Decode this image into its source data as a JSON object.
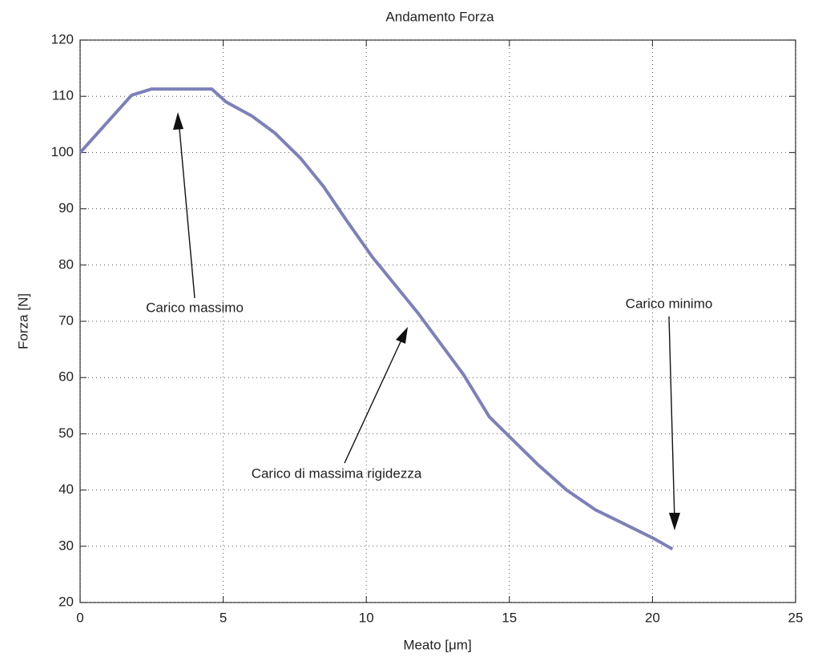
{
  "chart_data": {
    "type": "line",
    "title": "Andamento Forza",
    "x_label": "Meato [μm]",
    "y_label": "Forza [N]",
    "x": [
      0,
      1.8,
      2.5,
      4.6,
      5.1,
      6,
      6.8,
      7.7,
      8.5,
      9.3,
      10.2,
      11,
      11.8,
      12.6,
      13.4,
      14.3,
      15.2,
      16,
      17,
      18,
      19,
      20,
      20.7
    ],
    "series": [
      {
        "name": "Forza",
        "color": "#7c80ba",
        "values": [
          100,
          110.2,
          111.3,
          111.3,
          109,
          106.5,
          103.5,
          99,
          94,
          88,
          81.5,
          76.5,
          71.5,
          66,
          60.5,
          53,
          48.5,
          44.5,
          40,
          36.5,
          34,
          31.5,
          29.5
        ]
      }
    ],
    "xlim": [
      0,
      25
    ],
    "xticks": [
      0,
      5,
      10,
      15,
      20,
      25
    ],
    "ylim": [
      20,
      120
    ],
    "yticks": [
      20,
      30,
      40,
      50,
      60,
      70,
      80,
      90,
      100,
      110,
      120
    ],
    "grid": true,
    "annotations": [
      "Carico massimo",
      "Carico di massima rigidezza",
      "Carico minimo"
    ]
  }
}
